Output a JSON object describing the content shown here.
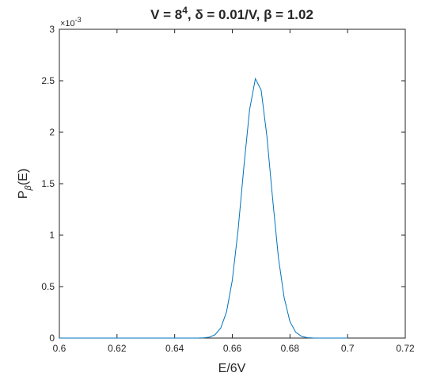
{
  "chart_data": {
    "type": "line",
    "title": {
      "base": "V = 8",
      "sup": "4",
      "rest": ", δ = 0.01/V, β = 1.02"
    },
    "xlabel": "E/6V",
    "ylabel": {
      "base": "P",
      "sub": "β",
      "rest": "(E)"
    },
    "y_exponent": {
      "base": "×10",
      "sup": "-3"
    },
    "xlim": [
      0.6,
      0.72
    ],
    "xticks": [
      0.6,
      0.62,
      0.64,
      0.66,
      0.68,
      0.7,
      0.72
    ],
    "ylim": [
      0,
      3
    ],
    "yticks": [
      0,
      0.5,
      1,
      1.5,
      2,
      2.5,
      3
    ],
    "grid": false,
    "x": [
      0.6,
      0.62,
      0.64,
      0.644,
      0.648,
      0.65,
      0.652,
      0.654,
      0.656,
      0.658,
      0.66,
      0.662,
      0.664,
      0.666,
      0.668,
      0.67,
      0.672,
      0.674,
      0.676,
      0.678,
      0.68,
      0.682,
      0.684,
      0.686,
      0.688,
      0.69,
      0.7
    ],
    "series": [
      {
        "color": "#0072bd",
        "values": [
          0,
          0,
          0,
          0,
          0.0004,
          0.002,
          0.009,
          0.032,
          0.098,
          0.255,
          0.562,
          1.05,
          1.66,
          2.22,
          2.52,
          2.41,
          1.96,
          1.35,
          0.78,
          0.39,
          0.16,
          0.057,
          0.017,
          0.004,
          0.001,
          0,
          0
        ]
      }
    ]
  }
}
